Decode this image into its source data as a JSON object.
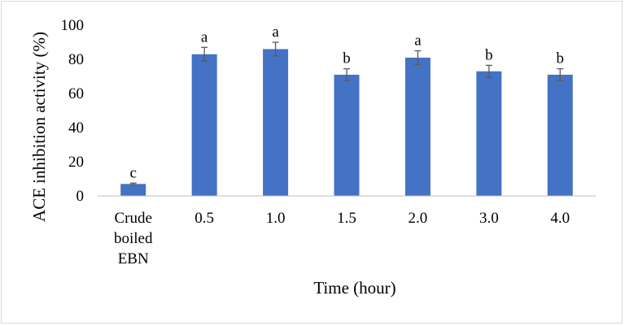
{
  "chart_data": {
    "type": "bar",
    "title": "",
    "xlabel": "Time (hour)",
    "ylabel": "ACE inhibition activity (%)",
    "ylim": [
      0,
      100
    ],
    "yticks": [
      0,
      20,
      40,
      60,
      80,
      100
    ],
    "grid": false,
    "legend": "none",
    "bar_color": "#4472c4",
    "categories": [
      [
        "Crude",
        "boiled",
        "EBN"
      ],
      [
        "0.5"
      ],
      [
        "1.0"
      ],
      [
        "1.5"
      ],
      [
        "2.0"
      ],
      [
        "3.0"
      ],
      [
        "4.0"
      ]
    ],
    "values": [
      7,
      83,
      86,
      71,
      81,
      73,
      71
    ],
    "errors": [
      0.5,
      4,
      4,
      3.5,
      4,
      3.5,
      3.5
    ],
    "significance_letters": [
      "c",
      "a",
      "a",
      "b",
      "a",
      "b",
      "b"
    ]
  }
}
